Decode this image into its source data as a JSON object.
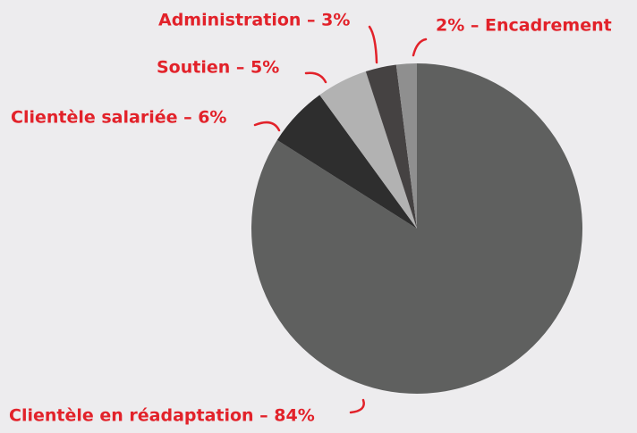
{
  "chart_data": {
    "type": "pie",
    "values": [
      84,
      6,
      5,
      3,
      2
    ],
    "value_labels": [
      "Clientèle en réadaptation – 84%",
      "Clientèle salariée – 6%",
      "Soutien – 5%",
      "Administration – 3%",
      "2% – Encadrement"
    ],
    "colors": [
      "#5f605f",
      "#2e2e2e",
      "#b2b2b2",
      "#454242",
      "#8f8f8f"
    ],
    "start_angle": 90,
    "direction": "clockwise"
  }
}
